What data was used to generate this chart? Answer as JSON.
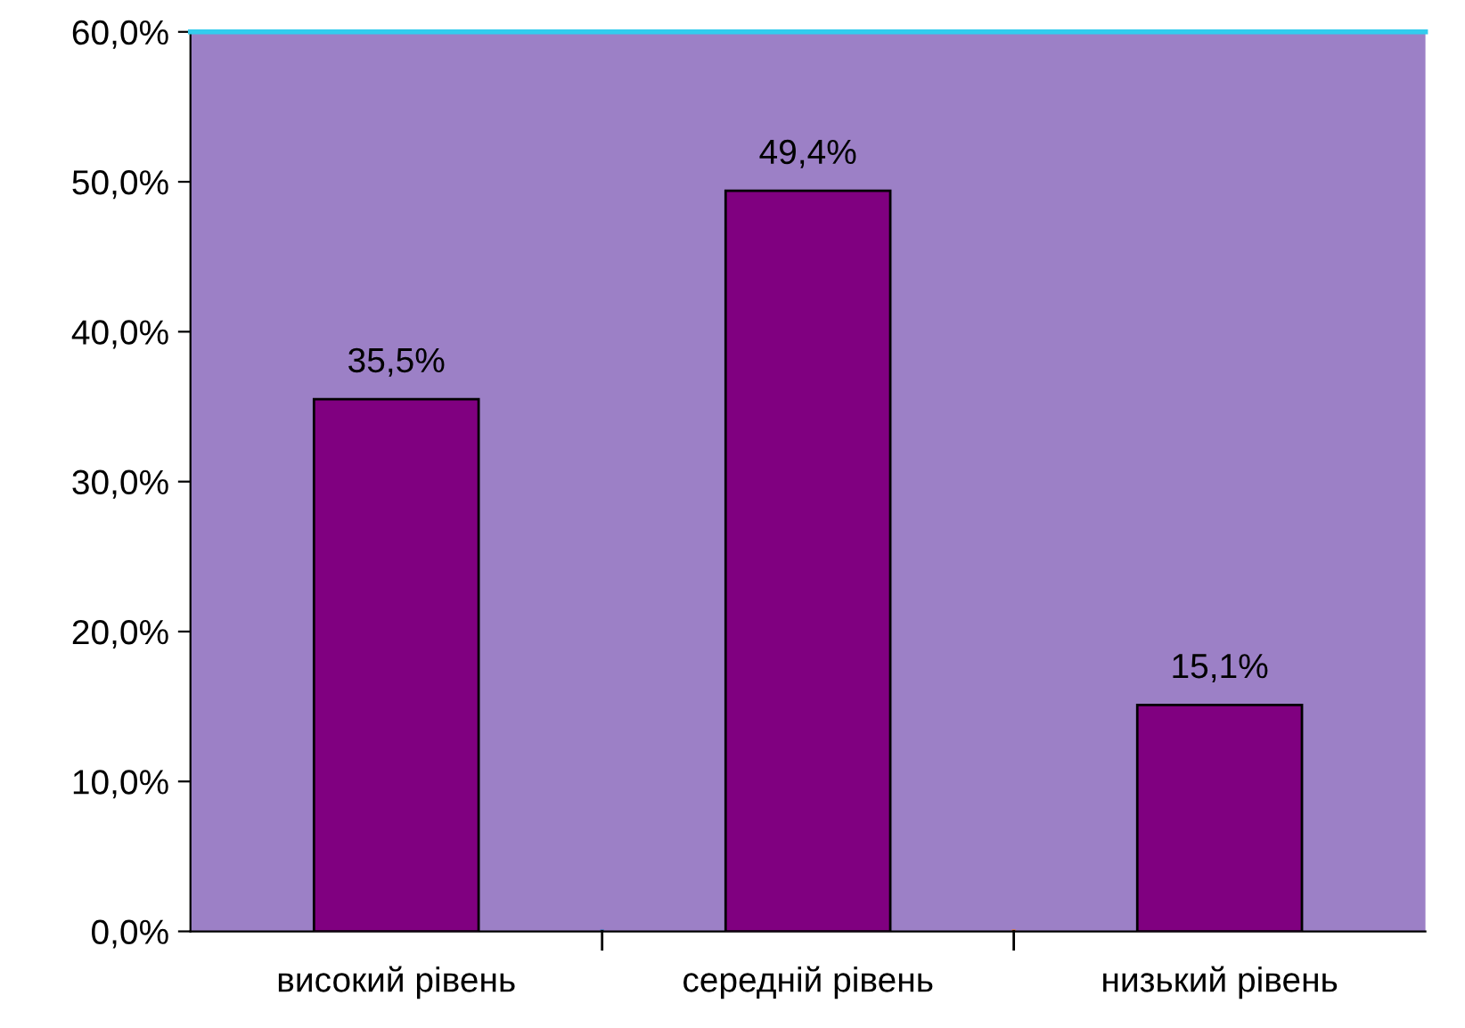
{
  "chart_data": {
    "type": "bar",
    "categories": [
      "високий рівень",
      "середній рівень",
      "низький рівень"
    ],
    "values": [
      35.5,
      49.4,
      15.1
    ],
    "value_labels": [
      "35,5%",
      "49,4%",
      "15,1%"
    ],
    "color": "#800080",
    "ylim": [
      0,
      60
    ],
    "yticks": [
      {
        "value": 0,
        "label": "0,0%"
      },
      {
        "value": 10,
        "label": "10,0%"
      },
      {
        "value": 20,
        "label": "20,0%"
      },
      {
        "value": 30,
        "label": "30,0%"
      },
      {
        "value": 40,
        "label": "40,0%"
      },
      {
        "value": 50,
        "label": "50,0%"
      },
      {
        "value": 60,
        "label": "60,0%"
      }
    ],
    "grid": false,
    "legend": false
  }
}
